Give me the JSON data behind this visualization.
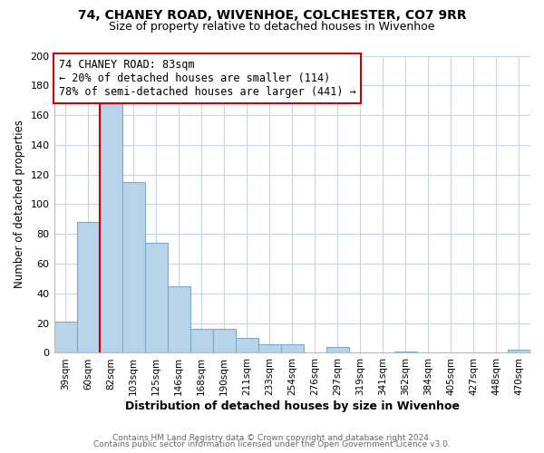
{
  "title": "74, CHANEY ROAD, WIVENHOE, COLCHESTER, CO7 9RR",
  "subtitle": "Size of property relative to detached houses in Wivenhoe",
  "xlabel": "Distribution of detached houses by size in Wivenhoe",
  "ylabel": "Number of detached properties",
  "bar_labels": [
    "39sqm",
    "60sqm",
    "82sqm",
    "103sqm",
    "125sqm",
    "146sqm",
    "168sqm",
    "190sqm",
    "211sqm",
    "233sqm",
    "254sqm",
    "276sqm",
    "297sqm",
    "319sqm",
    "341sqm",
    "362sqm",
    "384sqm",
    "405sqm",
    "427sqm",
    "448sqm",
    "470sqm"
  ],
  "bar_values": [
    21,
    88,
    168,
    115,
    74,
    45,
    16,
    16,
    10,
    6,
    6,
    0,
    4,
    0,
    0,
    1,
    0,
    0,
    0,
    0,
    2
  ],
  "bar_color": "#b8d4ea",
  "bar_edge_color": "#7aaac8",
  "vline_color": "#cc0000",
  "vline_x_index": 2,
  "annotation_title": "74 CHANEY ROAD: 83sqm",
  "annotation_line1": "← 20% of detached houses are smaller (114)",
  "annotation_line2": "78% of semi-detached houses are larger (441) →",
  "annotation_box_color": "#ffffff",
  "annotation_box_edge": "#cc0000",
  "ylim": [
    0,
    200
  ],
  "yticks": [
    0,
    20,
    40,
    60,
    80,
    100,
    120,
    140,
    160,
    180,
    200
  ],
  "footer1": "Contains HM Land Registry data © Crown copyright and database right 2024.",
  "footer2": "Contains public sector information licensed under the Open Government Licence v3.0.",
  "bg_color": "#ffffff",
  "grid_color": "#c8d4e4"
}
